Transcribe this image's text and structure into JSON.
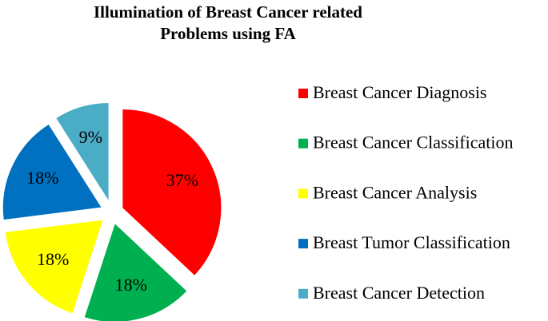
{
  "chart_data": {
    "type": "pie",
    "title": "Illumination of Breast Cancer related Problems using FA",
    "categories": [
      "Breast Cancer Diagnosis",
      "Breast Cancer Classification",
      "Breast Cancer Analysis",
      "Breast Tumor Classification",
      "Breast Cancer Detection"
    ],
    "values": [
      37,
      18,
      18,
      18,
      9
    ],
    "value_labels": [
      "37%",
      "18%",
      "18%",
      "18%",
      "9%"
    ],
    "colors": [
      "#ff0000",
      "#00b050",
      "#ffff00",
      "#0070c0",
      "#4bacc6"
    ],
    "legend": "right"
  }
}
